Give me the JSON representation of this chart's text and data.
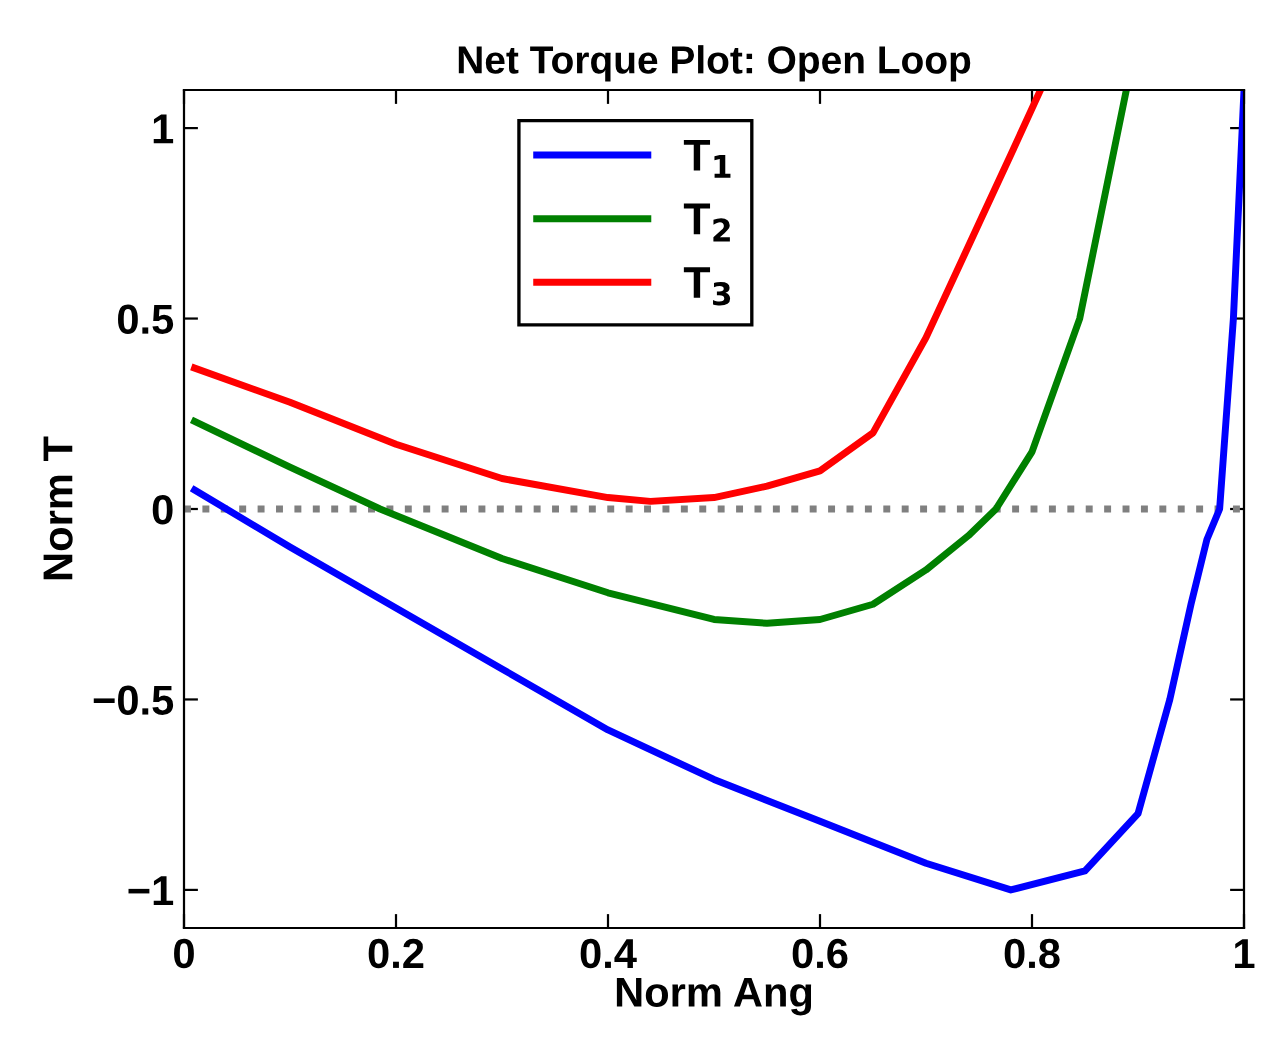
{
  "chart_data": {
    "type": "line",
    "title": "Net Torque Plot: Open Loop",
    "xlabel": "Norm Ang",
    "ylabel": "Norm T",
    "xlim": [
      0,
      1
    ],
    "ylim": [
      -1.1,
      1.1
    ],
    "xticks": [
      0,
      0.2,
      0.4,
      0.6,
      0.8,
      1
    ],
    "yticks": [
      -1,
      -0.5,
      0,
      0.5,
      1
    ],
    "grid": false,
    "legend": "top",
    "marker": "none",
    "line_style": "solid",
    "ref_lines": [
      {
        "axis": "y",
        "value": 0,
        "label": null,
        "color": "#808080",
        "line_style": "dotted"
      }
    ],
    "series": [
      {
        "name": "T$_{1}$",
        "color": "#0000ff",
        "x": [
          0.01,
          0.04,
          0.1,
          0.2,
          0.3,
          0.4,
          0.5,
          0.6,
          0.7,
          0.78,
          0.85,
          0.9,
          0.93,
          0.95,
          0.965,
          0.977,
          0.99,
          1.0
        ],
        "values": [
          0.05,
          0.0,
          -0.1,
          -0.26,
          -0.42,
          -0.58,
          -0.71,
          -0.82,
          -0.93,
          -1.0,
          -0.95,
          -0.8,
          -0.5,
          -0.25,
          -0.08,
          0.0,
          0.5,
          1.1
        ]
      },
      {
        "name": "T$_{2}$",
        "color": "#008000",
        "x": [
          0.01,
          0.1,
          0.185,
          0.3,
          0.4,
          0.5,
          0.55,
          0.6,
          0.65,
          0.7,
          0.74,
          0.766,
          0.8,
          0.845,
          0.889
        ],
        "values": [
          0.23,
          0.11,
          0.0,
          -0.13,
          -0.22,
          -0.29,
          -0.3,
          -0.29,
          -0.25,
          -0.16,
          -0.07,
          0.0,
          0.15,
          0.5,
          1.1
        ]
      },
      {
        "name": "T$_{3}$",
        "color": "#ff0000",
        "x": [
          0.01,
          0.1,
          0.2,
          0.3,
          0.4,
          0.44,
          0.5,
          0.55,
          0.6,
          0.65,
          0.7,
          0.75,
          0.78,
          0.808
        ],
        "values": [
          0.37,
          0.28,
          0.17,
          0.08,
          0.03,
          0.02,
          0.03,
          0.06,
          0.1,
          0.2,
          0.45,
          0.75,
          0.93,
          1.1
        ]
      }
    ]
  }
}
